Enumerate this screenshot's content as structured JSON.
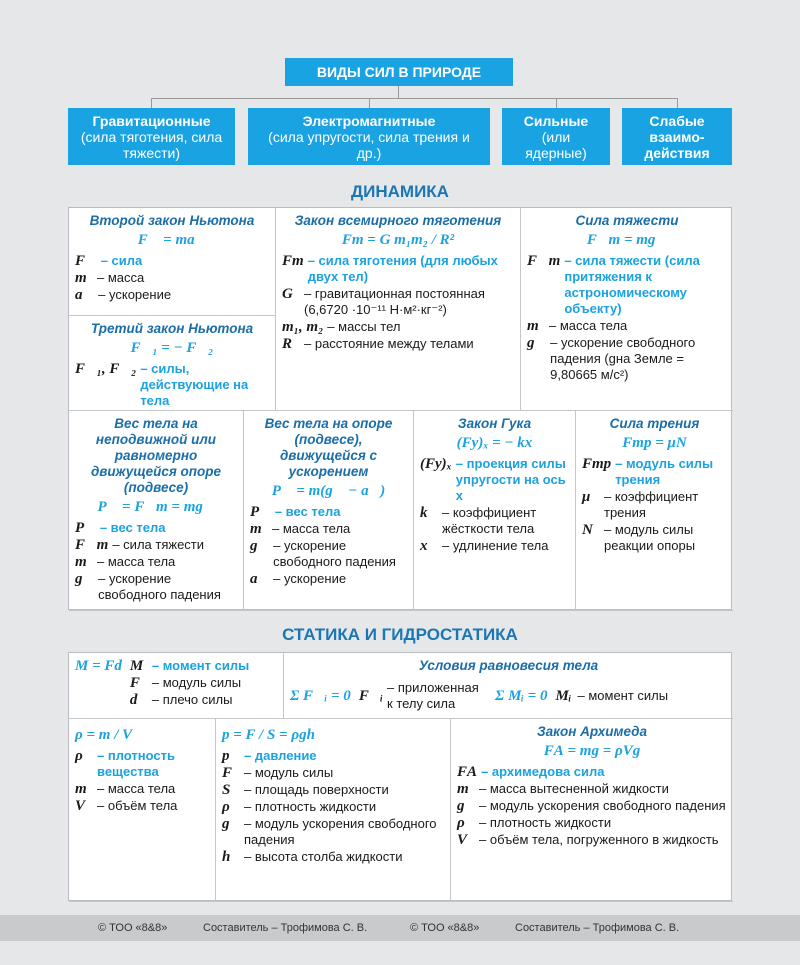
{
  "title": "ВИДЫ СИЛ В ПРИРОДЕ",
  "kinds": [
    {
      "name": "Гравитационные",
      "sub": "(сила тяготения, сила тяжести)"
    },
    {
      "name": "Электромагнитные",
      "sub": "(сила упругости, сила трения и др.)"
    },
    {
      "name": "Сильные",
      "sub": "(или ядерные)"
    },
    {
      "name": "Слабые взаимо-действия",
      "sub": ""
    }
  ],
  "dynamics": {
    "heading": "ДИНАМИКА",
    "cells": [
      {
        "title": "Второй закон Ньютона",
        "formula": "F⃗ = ma⃗",
        "items": [
          {
            "s": "F⃗",
            "d": "– сила",
            "hl": true
          },
          {
            "s": "m",
            "d": "– масса"
          },
          {
            "s": "a⃗",
            "d": "– ускорение"
          }
        ]
      },
      {
        "title": "Третий закон Ньютона",
        "formula": "F⃗₁ = − F⃗₂",
        "items": [
          {
            "s": "F⃗₁, F⃗₂",
            "d": "– силы, действующие на тела",
            "hl": true
          }
        ]
      },
      {
        "title": "Закон всемирного тяготения",
        "formula": "Fт = G m₁m₂ / R²",
        "items": [
          {
            "s": "Fт",
            "d": "– сила тяготения (для любых двух тел)",
            "hl": true
          },
          {
            "s": "G",
            "d": "– гравитационная постоянная (6,6720 ·10⁻¹¹ Н·м²·кг⁻²)"
          },
          {
            "s": "m₁, m₂",
            "d": "– массы тел"
          },
          {
            "s": "R",
            "d": "– расстояние между телами"
          }
        ]
      },
      {
        "title": "Сила тяжести",
        "formula": "F⃗т = mg⃗",
        "items": [
          {
            "s": "F⃗т",
            "d": "– сила тяжести (сила притяжения к астрономическому объекту)",
            "hl": true
          },
          {
            "s": "m",
            "d": "– масса тела"
          },
          {
            "s": "g⃗",
            "d": "– ускорение свободного падения (gна Земле = 9,80665 м/с²)"
          }
        ]
      },
      {
        "title": "Вес тела на неподвижной или равномерно движущейся опоре (подвесе)",
        "formula": "P⃗ = F⃗т = mg⃗",
        "items": [
          {
            "s": "P⃗",
            "d": "– вес тела",
            "hl": true
          },
          {
            "s": "F⃗т",
            "d": "– сила тяжести"
          },
          {
            "s": "m",
            "d": "– масса тела"
          },
          {
            "s": "g⃗",
            "d": "– ускорение свободного падения"
          }
        ]
      },
      {
        "title": "Вес тела на опоре (подвесе), движущейся с ускорением",
        "formula": "P⃗ = m(g⃗ − a⃗)",
        "items": [
          {
            "s": "P⃗",
            "d": "– вес тела",
            "hl": true
          },
          {
            "s": "m",
            "d": "– масса тела"
          },
          {
            "s": "g⃗",
            "d": "– ускорение свободного падения"
          },
          {
            "s": "a⃗",
            "d": "– ускорение"
          }
        ]
      },
      {
        "title": "Закон Гука",
        "formula": "(Fу)ₓ = − kx",
        "items": [
          {
            "s": "(Fу)ₓ",
            "d": "– проекция силы упругости на ось x",
            "hl": true
          },
          {
            "s": "k",
            "d": "– коэффициент жёсткости тела"
          },
          {
            "s": "x",
            "d": "– удлинение тела"
          }
        ]
      },
      {
        "title": "Сила трения",
        "formula": "Fтр = μN",
        "items": [
          {
            "s": "Fтр",
            "d": "– модуль силы трения",
            "hl": true
          },
          {
            "s": "μ",
            "d": "– коэффициент трения"
          },
          {
            "s": "N",
            "d": "– модуль силы реакции опоры"
          }
        ]
      }
    ]
  },
  "statics": {
    "heading": "СТАТИКА И ГИДРОСТАТИКА",
    "moment": {
      "formula": "M = Fd",
      "items": [
        {
          "s": "M",
          "d": "– момент силы",
          "hl": true
        },
        {
          "s": "F",
          "d": "– модуль силы"
        },
        {
          "s": "d",
          "d": "– плечо силы"
        }
      ]
    },
    "equilibrium": {
      "title": "Условия равновесия тела",
      "f1": "Σ F⃗ᵢ = 0",
      "t1s": "F⃗ᵢ",
      "t1d": "– приложенная к телу сила",
      "f2": "Σ Mᵢ = 0",
      "t2s": "Mᵢ",
      "t2d": "– момент силы"
    },
    "cells": [
      {
        "title": "",
        "formula": "ρ = m / V",
        "items": [
          {
            "s": "ρ",
            "d": "– плотность вещества",
            "hl": true
          },
          {
            "s": "m",
            "d": "– масса тела"
          },
          {
            "s": "V",
            "d": "– объём тела"
          }
        ]
      },
      {
        "title": "",
        "formula": "p = F / S = ρgh",
        "items": [
          {
            "s": "p",
            "d": "– давление",
            "hl": true
          },
          {
            "s": "F",
            "d": "– модуль силы"
          },
          {
            "s": "S",
            "d": "– площадь поверхности"
          },
          {
            "s": "ρ",
            "d": "– плотность жидкости"
          },
          {
            "s": "g",
            "d": "– модуль ускорения свободного падения"
          },
          {
            "s": "h",
            "d": "– высота столба жидкости"
          }
        ]
      },
      {
        "title": "Закон Архимеда",
        "formula": "FА = mg = ρVg",
        "items": [
          {
            "s": "FА",
            "d": "– архимедова сила",
            "hl": true
          },
          {
            "s": "m",
            "d": "– масса вытесненной жидкости"
          },
          {
            "s": "g",
            "d": "– модуль ускорения свободного падения"
          },
          {
            "s": "ρ",
            "d": "– плотность жидкости"
          },
          {
            "s": "V",
            "d": "– объём тела, погруженного в жидкость"
          }
        ]
      }
    ]
  },
  "footer": [
    "© ТОО «8&8»",
    "Составитель – Трофимова С. В.",
    "© ТОО «8&8»",
    "Составитель – Трофимова С. В."
  ],
  "colors": {
    "box": "#1aa3e3",
    "heading": "#1b76b4",
    "highlight": "#1ca2de"
  }
}
